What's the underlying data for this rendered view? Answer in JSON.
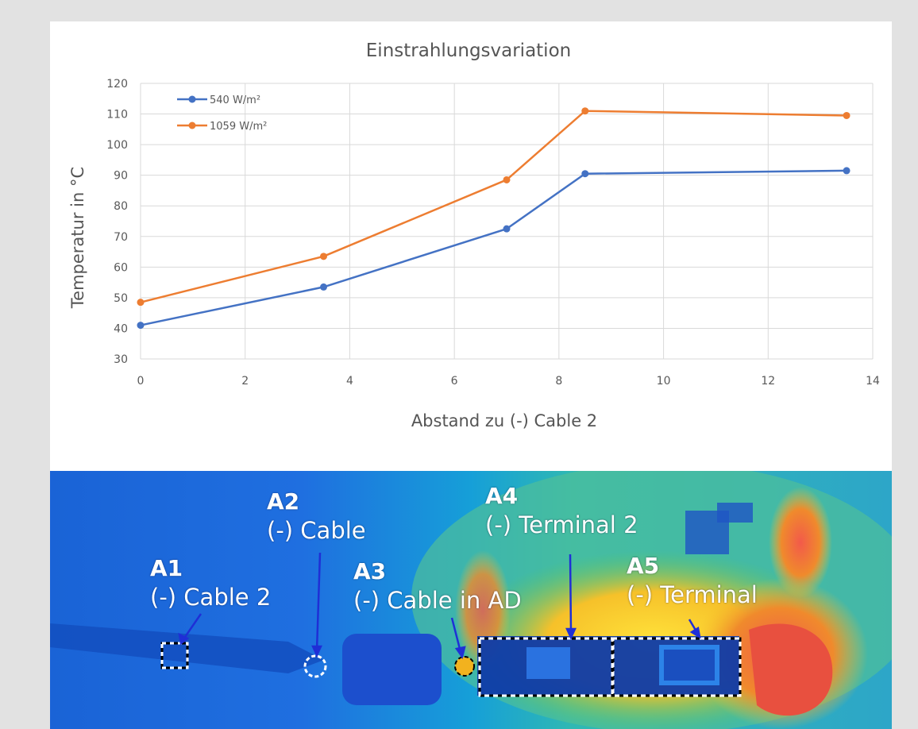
{
  "chart_data": {
    "type": "line",
    "title": "Einstrahlungsvariation",
    "xlabel": "Abstand zu (-) Cable 2",
    "ylabel": "Temperatur in °C",
    "xlim": [
      0,
      14
    ],
    "ylim": [
      30,
      120
    ],
    "xticks": [
      0,
      2,
      4,
      6,
      8,
      10,
      12,
      14
    ],
    "yticks": [
      30,
      40,
      50,
      60,
      70,
      80,
      90,
      100,
      110,
      120
    ],
    "grid": true,
    "legend_position": "top-left",
    "series": [
      {
        "name": "540 W/m²",
        "color": "#4472c4",
        "x": [
          0,
          3.5,
          7,
          8.5,
          13.5
        ],
        "y": [
          41,
          53.5,
          72.5,
          90.5,
          91.5
        ]
      },
      {
        "name": "1059 W/m²",
        "color": "#ed7d31",
        "x": [
          0,
          3.5,
          7,
          8.5,
          13.5
        ],
        "y": [
          48.5,
          63.5,
          88.5,
          111,
          109.5
        ]
      }
    ]
  },
  "thermal_image": {
    "labels": [
      {
        "id": "A1",
        "code": "A1",
        "desc": "(-) Cable 2"
      },
      {
        "id": "A2",
        "code": "A2",
        "desc": "(-) Cable"
      },
      {
        "id": "A3",
        "code": "A3",
        "desc": "(-) Cable in AD"
      },
      {
        "id": "A4",
        "code": "A4",
        "desc": "(-) Terminal 2"
      },
      {
        "id": "A5",
        "code": "A5",
        "desc": "(-) Terminal"
      }
    ],
    "arrow_color": "#1f2fd6"
  }
}
